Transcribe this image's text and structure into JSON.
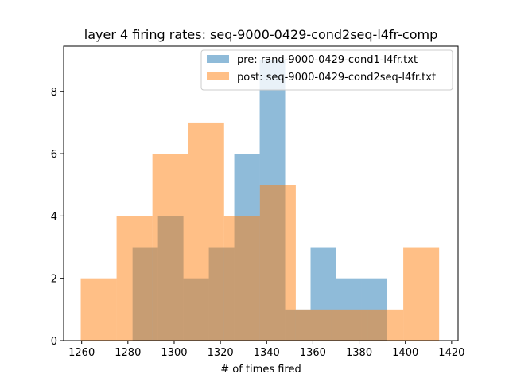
{
  "chart_data": {
    "type": "histogram",
    "title": "layer 4 firing rates: seq-9000-0429-cond2seq-l4fr-comp",
    "xlabel": "# of times fired",
    "ylabel": "",
    "xlim": [
      1252.2,
      1422.8
    ],
    "ylim": [
      0,
      9.45
    ],
    "x_ticks": [
      1260,
      1280,
      1300,
      1320,
      1340,
      1360,
      1380,
      1400,
      1420
    ],
    "y_ticks": [
      0,
      2,
      4,
      6,
      8
    ],
    "legend_position": "top-right",
    "series": [
      {
        "name": "pre: rand-9000-0429-cond1-l4fr.txt",
        "color": "#1f77b4",
        "opacity": 0.5,
        "bin_edges": [
          1282,
          1293,
          1304,
          1315,
          1326,
          1337,
          1348,
          1359,
          1370,
          1381,
          1392
        ],
        "counts": [
          3,
          4,
          2,
          3,
          6,
          9,
          1,
          3,
          2,
          2
        ]
      },
      {
        "name": "post: seq-9000-0429-cond2seq-l4fr.txt",
        "color": "#ff7f0e",
        "opacity": 0.5,
        "bin_edges": [
          1259.6,
          1275.1,
          1290.6,
          1306.1,
          1321.6,
          1337.1,
          1352.6,
          1368.1,
          1383.6,
          1399.1,
          1414.6
        ],
        "counts": [
          2,
          4,
          6,
          7,
          4,
          5,
          1,
          1,
          1,
          3
        ]
      }
    ]
  }
}
